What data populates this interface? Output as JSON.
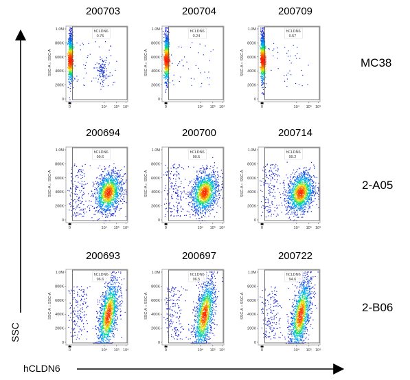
{
  "figure": {
    "axis_titles": {
      "y": "SSC",
      "x": "hCLDN6"
    },
    "rows": [
      {
        "label": "MC38",
        "panels": [
          {
            "sample": "200703",
            "gate_label": "hCLDN6",
            "gate_percent": "0.75"
          },
          {
            "sample": "200704",
            "gate_label": "hCLDN6",
            "gate_percent": "0.24"
          },
          {
            "sample": "200709",
            "gate_label": "hCLDN6",
            "gate_percent": "0.57"
          }
        ]
      },
      {
        "label": "2-A05",
        "panels": [
          {
            "sample": "200694",
            "gate_label": "hCLDN6",
            "gate_percent": "99.6"
          },
          {
            "sample": "200700",
            "gate_label": "hCLDN6",
            "gate_percent": "99.5"
          },
          {
            "sample": "200714",
            "gate_label": "hCLDN6",
            "gate_percent": "99.2"
          }
        ]
      },
      {
        "label": "2-B06",
        "panels": [
          {
            "sample": "200693",
            "gate_label": "hCLDN6",
            "gate_percent": "96.6"
          },
          {
            "sample": "200697",
            "gate_label": "hCLDN6",
            "gate_percent": "96.5"
          },
          {
            "sample": "200722",
            "gate_label": "hCLDN6",
            "gate_percent": "94.6"
          }
        ]
      }
    ],
    "panel_axes": {
      "y_label": "SSC-A :: SSC-A",
      "y_ticks": [
        "1.0M",
        "800K",
        "600K",
        "400K",
        "200K",
        "0"
      ],
      "x_ticks": [
        "0",
        "10⁴",
        "10⁵",
        "10⁶"
      ]
    }
  },
  "chart_data": {
    "type": "scatter",
    "plot_style": "flow cytometry pseudocolor density dot plots, 3x3 grid",
    "x_axis": {
      "parameter": "hCLDN6",
      "scale": "biexponential/log",
      "ticks": [
        "0",
        "10⁴",
        "10⁵",
        "10⁶"
      ]
    },
    "y_axis": {
      "parameter": "SSC-A",
      "scale": "linear",
      "range": [
        0,
        1000000
      ],
      "ticks": [
        "0",
        "200K",
        "400K",
        "600K",
        "800K",
        "1.0M"
      ]
    },
    "colors": {
      "low_density": "#1010d0",
      "mid_density": "#00b8ff",
      "high_density": "#ff2000"
    },
    "groups": [
      {
        "label": "MC38",
        "samples": [
          "200703",
          "200704",
          "200709"
        ],
        "hCLDN6_positive_percent": [
          0.75,
          0.24,
          0.57
        ]
      },
      {
        "label": "2-A05",
        "samples": [
          "200694",
          "200700",
          "200714"
        ],
        "hCLDN6_positive_percent": [
          99.6,
          99.5,
          99.2
        ]
      },
      {
        "label": "2-B06",
        "samples": [
          "200693",
          "200697",
          "200722"
        ],
        "hCLDN6_positive_percent": [
          96.6,
          96.5,
          94.6
        ]
      }
    ]
  }
}
